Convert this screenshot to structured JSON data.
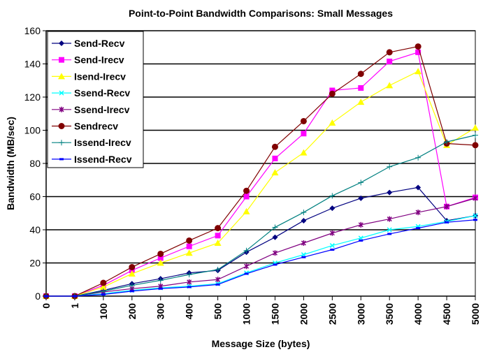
{
  "chart_data": {
    "type": "line",
    "title": "Point-to-Point Bandwidth Comparisons: Small Messages",
    "xlabel": "Message Size (bytes)",
    "ylabel": "Bandwidth (MB/sec)",
    "ylim": [
      0,
      160
    ],
    "yticks": [
      "0",
      "20",
      "40",
      "60",
      "80",
      "100",
      "120",
      "140",
      "160"
    ],
    "grid": "horizontal",
    "legend_placement": "top-left",
    "categories": [
      "0",
      "1",
      "100",
      "200",
      "300",
      "400",
      "500",
      "1000",
      "1500",
      "2000",
      "2500",
      "3000",
      "3500",
      "4000",
      "4500",
      "5000"
    ],
    "series": [
      {
        "name": "Send-Recv",
        "color": "#000080",
        "marker": "diamond",
        "values": [
          0,
          0,
          3.5,
          7.5,
          10.5,
          14,
          15.5,
          26.5,
          35.5,
          45.5,
          53,
          59,
          62.5,
          65.5,
          45.5,
          48.5
        ]
      },
      {
        "name": "Send-Irecv",
        "color": "#FF00FF",
        "marker": "square",
        "values": [
          0,
          0,
          6.5,
          15.5,
          23,
          30,
          36.5,
          60,
          83,
          98,
          124,
          125.5,
          141.5,
          147,
          54,
          59.5
        ]
      },
      {
        "name": "Isend-Irecv",
        "color": "#FFFF00",
        "marker": "triangle",
        "values": [
          0,
          0,
          5.5,
          13.5,
          20,
          26,
          32,
          51,
          74.5,
          86.5,
          104.5,
          117,
          127,
          135.5,
          91,
          101.5
        ]
      },
      {
        "name": "Ssend-Recv",
        "color": "#00FFFF",
        "marker": "x",
        "values": [
          0,
          0,
          1.5,
          3.5,
          5,
          6,
          7.5,
          14,
          20,
          25,
          30.5,
          35,
          40,
          42,
          45,
          48.5
        ]
      },
      {
        "name": "Ssend-Irecv",
        "color": "#800080",
        "marker": "star",
        "values": [
          0,
          0,
          2.5,
          4.5,
          6,
          8.5,
          10,
          18,
          26,
          32,
          38,
          43,
          46.5,
          50.5,
          54,
          59
        ]
      },
      {
        "name": "Sendrecv",
        "color": "#800000",
        "marker": "circle",
        "values": [
          0,
          0,
          8,
          17.5,
          25.5,
          33.5,
          41,
          63.5,
          90,
          105.5,
          122,
          134,
          147,
          150.5,
          92,
          91
        ]
      },
      {
        "name": "Issend-Irecv",
        "color": "#008080",
        "marker": "plus",
        "values": [
          0,
          0,
          3,
          6.5,
          9.5,
          13,
          16,
          27.5,
          41.5,
          50.5,
          60.5,
          68.5,
          78,
          83.5,
          93,
          97
        ]
      },
      {
        "name": "Issend-Recv",
        "color": "#0000FF",
        "marker": "dash",
        "values": [
          0,
          0,
          1,
          3,
          4.5,
          5.5,
          7,
          13.5,
          19,
          23.5,
          28,
          33.5,
          37.5,
          41,
          44.5,
          46
        ]
      }
    ]
  }
}
